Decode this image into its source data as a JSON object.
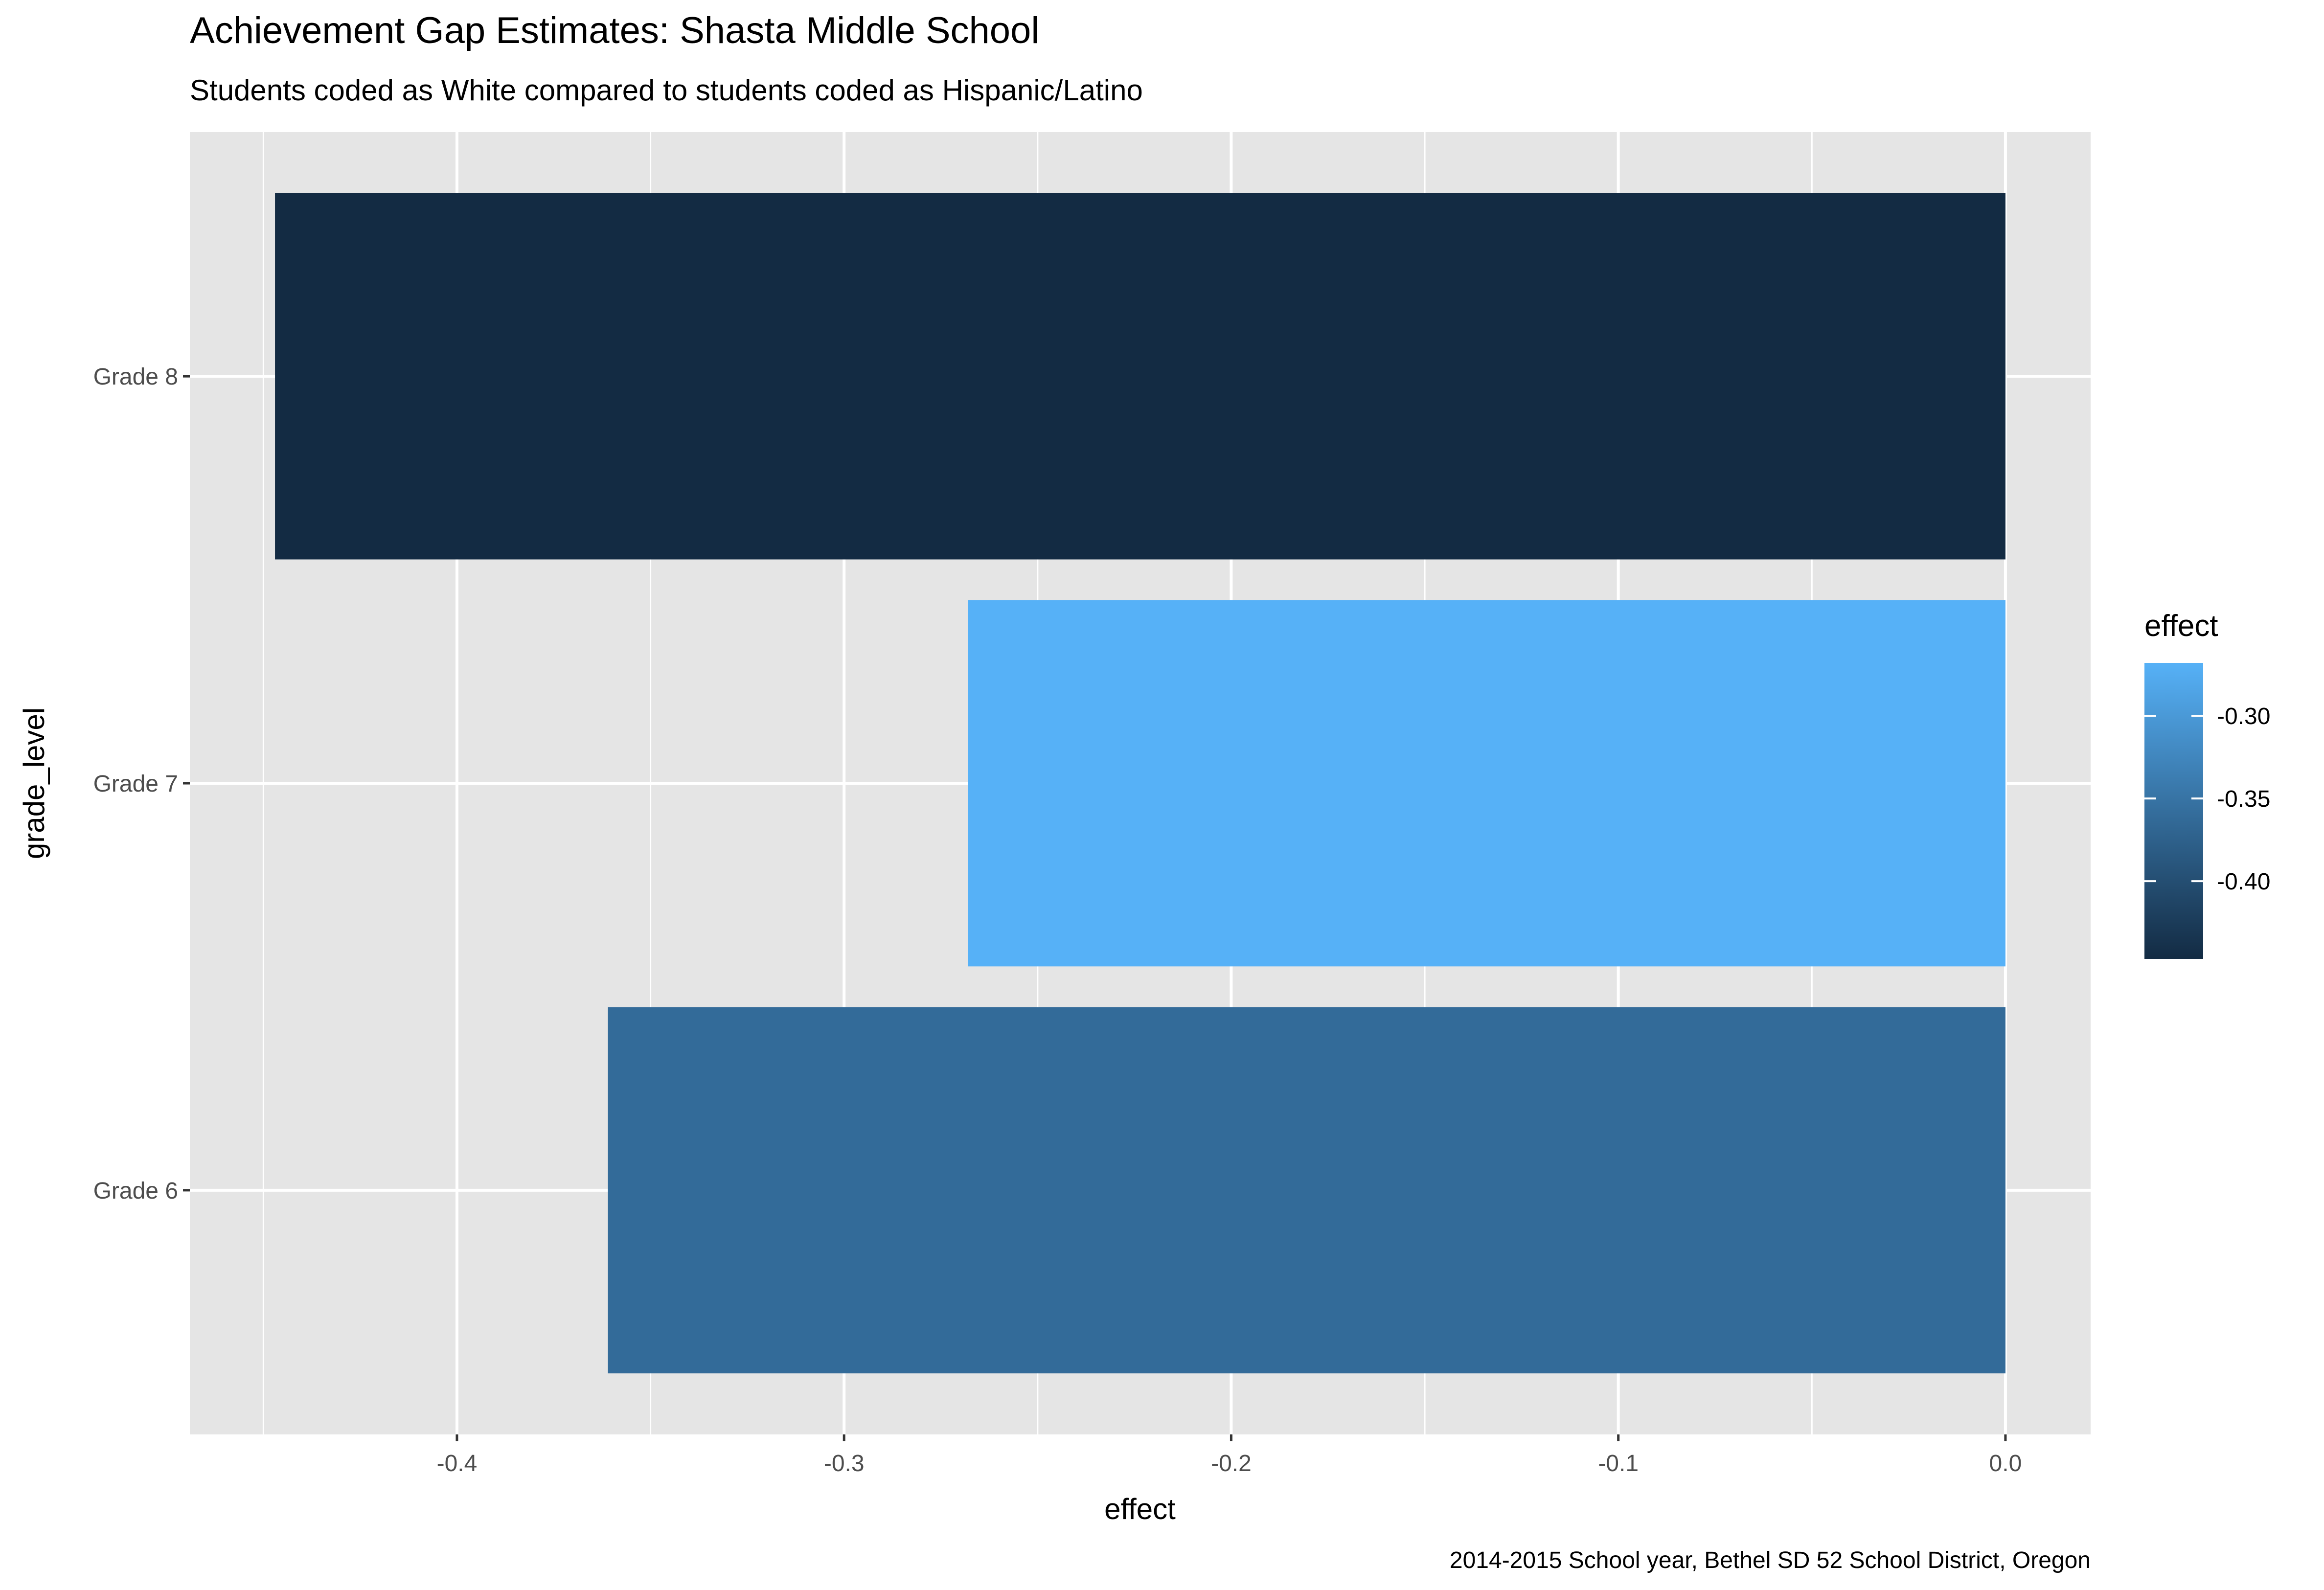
{
  "chart_data": {
    "type": "bar",
    "orientation": "horizontal",
    "title": "Achievement Gap Estimates: Shasta Middle School",
    "subtitle": "Students coded as White compared to students coded as Hispanic/Latino",
    "caption": "2014-2015 School year, Bethel SD 52 School District, Oregon",
    "xlabel": "effect",
    "ylabel": "grade_level",
    "categories": [
      "Grade 6",
      "Grade 7",
      "Grade 8"
    ],
    "values": [
      -0.361,
      -0.268,
      -0.447
    ],
    "xlim": [
      -0.469,
      0.022
    ],
    "x_ticks": [
      -0.4,
      -0.3,
      -0.2,
      -0.1,
      0.0
    ],
    "x_tick_labels": [
      "-0.4",
      "-0.3",
      "-0.2",
      "-0.1",
      "0.0"
    ],
    "grid": true,
    "legend": {
      "title": "effect",
      "position": "right",
      "type": "colorbar",
      "range": [
        -0.447,
        -0.268
      ],
      "ticks": [
        -0.3,
        -0.35,
        -0.4
      ],
      "tick_labels": [
        "-0.30",
        "-0.35",
        "-0.40"
      ],
      "low_color": "#132B43",
      "high_color": "#56B1F7"
    },
    "colors": {
      "panel_background": "#E5E5E5",
      "grid": "#FFFFFF"
    }
  }
}
